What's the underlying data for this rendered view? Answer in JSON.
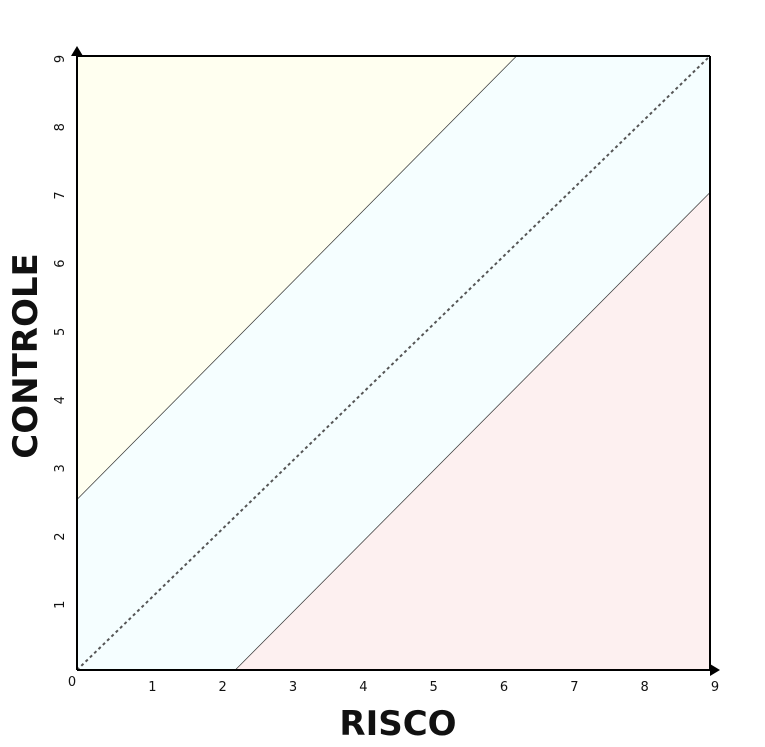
{
  "chart_data": {
    "type": "area",
    "xlabel": "RISCO",
    "ylabel": "CONTROLE",
    "origin_label": "0",
    "xlim": [
      0,
      9
    ],
    "ylim": [
      0,
      9
    ],
    "x_ticks": [
      "1",
      "2",
      "3",
      "4",
      "5",
      "6",
      "7",
      "8",
      "9"
    ],
    "y_ticks": [
      "1",
      "2",
      "3",
      "4",
      "5",
      "6",
      "7",
      "8",
      "9"
    ],
    "grid": false,
    "regions": [
      {
        "color": "#fffff0",
        "polygon": [
          [
            0,
            9
          ],
          [
            6.25,
            9
          ],
          [
            0,
            2.5
          ]
        ]
      },
      {
        "color": "#f5feff",
        "polygon": [
          [
            0,
            2.5
          ],
          [
            6.25,
            9
          ],
          [
            9,
            9
          ],
          [
            9,
            7.0
          ],
          [
            2.25,
            0
          ],
          [
            0,
            0
          ]
        ]
      },
      {
        "color": "#fdf0f0",
        "polygon": [
          [
            2.25,
            0
          ],
          [
            9,
            7.0
          ],
          [
            9,
            0
          ]
        ]
      }
    ],
    "lines": [
      {
        "style": "solid",
        "points": [
          [
            0,
            2.5
          ],
          [
            6.25,
            9
          ]
        ]
      },
      {
        "style": "solid",
        "points": [
          [
            2.25,
            0
          ],
          [
            9,
            7.0
          ]
        ]
      },
      {
        "style": "dashed",
        "points": [
          [
            0,
            0
          ],
          [
            9,
            9
          ]
        ]
      }
    ]
  }
}
